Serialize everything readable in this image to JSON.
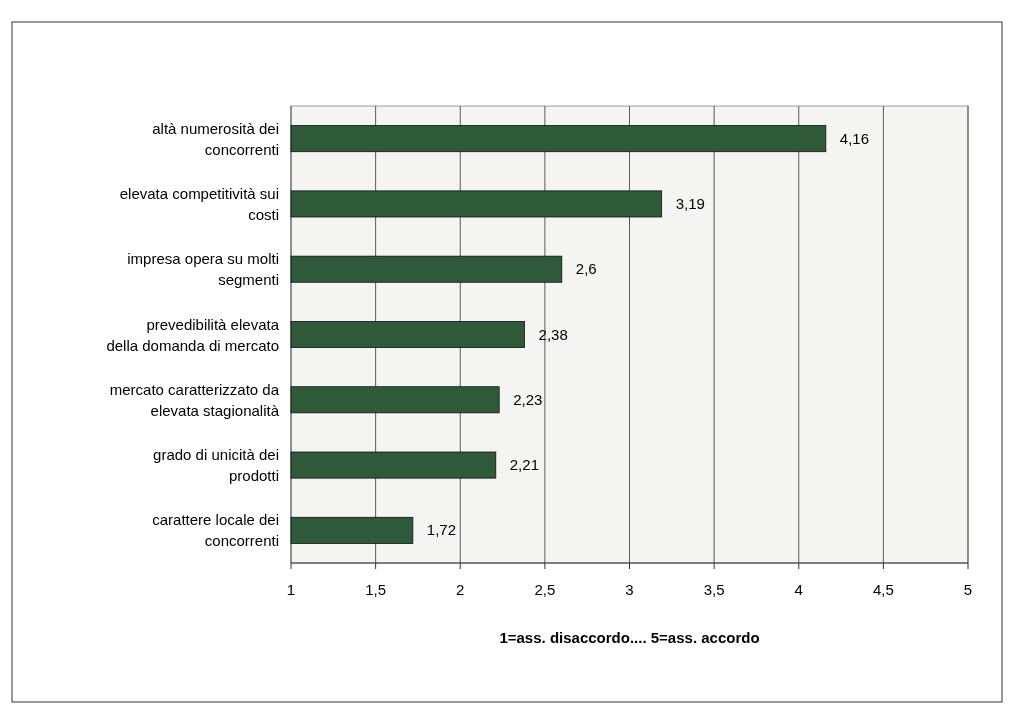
{
  "chart_data": {
    "type": "bar",
    "orientation": "horizontal",
    "categories": [
      "altà numerosità dei concorrenti",
      "elevata competitività sui costi",
      "impresa opera su molti segmenti",
      "prevedibilità elevata della domanda di mercato",
      "mercato caratterizzato da elevata stagionalità",
      "grado di unicità dei prodotti",
      "carattere locale dei concorrenti"
    ],
    "values": [
      4.16,
      3.19,
      2.6,
      2.38,
      2.23,
      2.21,
      1.72
    ],
    "value_labels": [
      "4,16",
      "3,19",
      "2,6",
      "2,38",
      "2,23",
      "2,21",
      "1,72"
    ],
    "color": "#2f5a3a",
    "xlim": [
      1,
      5
    ],
    "xticks": [
      1,
      {
        "value": 1.5,
        "label": "1,5"
      },
      2,
      {
        "value": 2.5,
        "label": "2,5"
      },
      3,
      {
        "value": 3.5,
        "label": "3,5"
      },
      4,
      {
        "value": 4.5,
        "label": "4,5"
      },
      5
    ],
    "xlabel": "1=ass. disaccordo.... 5=ass. accordo",
    "grid": "x"
  }
}
